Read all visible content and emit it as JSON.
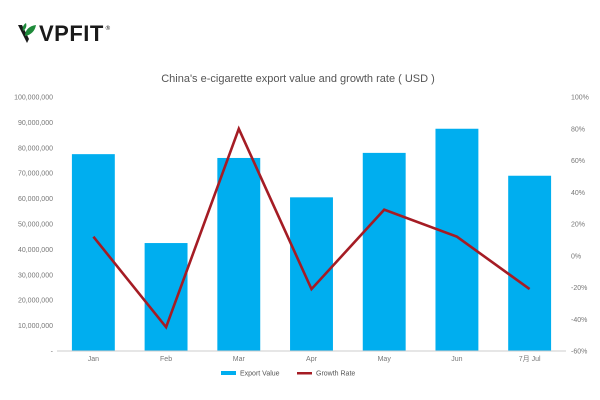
{
  "brand": {
    "name": "VPFIT",
    "registered_mark": "®",
    "logo_icon": "leaf-icon",
    "leaf_color": "#1e8a3a"
  },
  "chart_data": {
    "type": "bar",
    "title": "China's e-cigarette export value and growth rate ( USD )",
    "categories": [
      "Jan",
      "Feb",
      "Mar",
      "Apr",
      "May",
      "Jun",
      "7月 Jul"
    ],
    "series": [
      {
        "name": "Export Value",
        "type": "bar",
        "axis": "left",
        "color": "#00aeef",
        "values": [
          77500000,
          42500000,
          76000000,
          60500000,
          78000000,
          87500000,
          69000000
        ]
      },
      {
        "name": "Growth Rate",
        "type": "line",
        "axis": "right",
        "color": "#a51c24",
        "values": [
          12,
          -45,
          80,
          -21,
          29,
          12,
          -21
        ]
      }
    ],
    "left_axis": {
      "min": 0,
      "max": 100000000,
      "ticks": [
        0,
        10000000,
        20000000,
        30000000,
        40000000,
        50000000,
        60000000,
        70000000,
        80000000,
        90000000,
        100000000
      ],
      "tick_labels": [
        "-",
        "10,000,000",
        "20,000,000",
        "30,000,000",
        "40,000,000",
        "50,000,000",
        "60,000,000",
        "70,000,000",
        "80,000,000",
        "90,000,000",
        "100,000,000"
      ]
    },
    "right_axis": {
      "min": -60,
      "max": 100,
      "ticks": [
        -60,
        -40,
        -20,
        0,
        20,
        40,
        60,
        80,
        100
      ],
      "tick_labels": [
        "-60%",
        "-40%",
        "-20%",
        "0%",
        "20%",
        "40%",
        "60%",
        "80%",
        "100%"
      ]
    },
    "grid": false,
    "legend_position": "bottom",
    "axis_line_color": "#cccccc",
    "tick_color": "#777777"
  }
}
